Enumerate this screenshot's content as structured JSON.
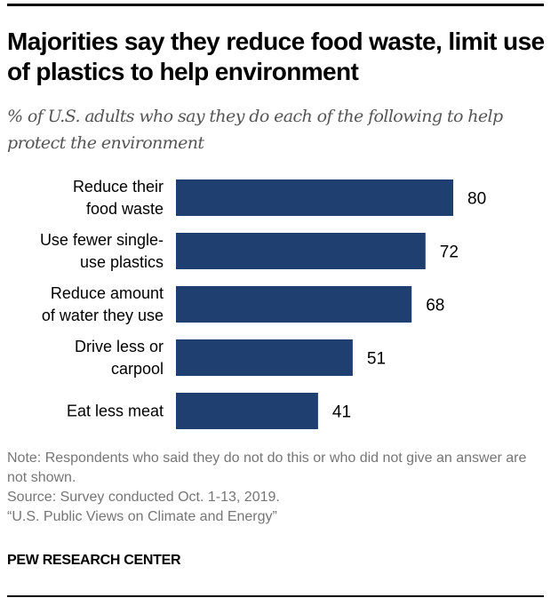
{
  "header": {
    "title": "Majorities say they reduce food waste, limit use of plastics to help environment",
    "subtitle": "% of U.S. adults who say they do each of the following to help protect the environment"
  },
  "chart_data": {
    "type": "bar",
    "orientation": "horizontal",
    "title": "Majorities say they reduce food waste, limit use of plastics to help environment",
    "subtitle": "% of U.S. adults who say they do each of the following to help protect the environment",
    "categories": [
      [
        "Reduce their",
        "food waste"
      ],
      [
        "Use fewer single-",
        "use plastics"
      ],
      [
        "Reduce amount",
        "of water they use"
      ],
      [
        "Drive less or",
        "carpool"
      ],
      [
        "Eat less meat"
      ]
    ],
    "values": [
      80,
      72,
      68,
      51,
      41
    ],
    "data_labels": [
      "80",
      "72",
      "68",
      "51",
      "41"
    ],
    "xlabel": "",
    "ylabel": "",
    "xlim": [
      0,
      100
    ],
    "grid": false,
    "bar_color": "#1f3f70"
  },
  "footer": {
    "note": "Note: Respondents who said they do not do this or who did not give an answer are not shown.",
    "source": "Source: Survey conducted Oct. 1-13, 2019.",
    "report": "“U.S. Public Views on Climate and Energy”",
    "brand": "PEW RESEARCH CENTER"
  }
}
